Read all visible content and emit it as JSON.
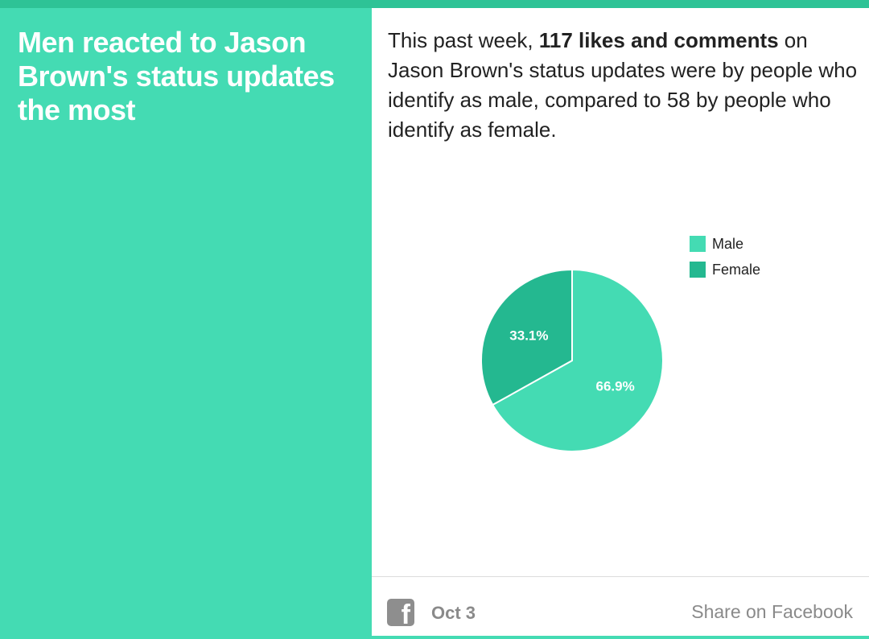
{
  "headline": "Men reacted to Jason Brown's status updates the most",
  "summary": {
    "prefix": "This past week, ",
    "highlight": "117 likes and comments",
    "suffix": " on Jason Brown's status updates were by people who identify as male, compared to 58 by people who identify as female."
  },
  "footer": {
    "icon": "facebook-icon",
    "icon_glyph": "f",
    "date": "Oct 3",
    "share_label": "Share on Facebook"
  },
  "colors": {
    "male": "#44dbb3",
    "female": "#24b890",
    "headline_bg": "#44dbb3",
    "top_bar": "#2ec396"
  },
  "chart_data": {
    "type": "pie",
    "title": "",
    "slices": [
      {
        "label": "Male",
        "value": 66.9,
        "display": "66.9%",
        "color": "#44dbb3"
      },
      {
        "label": "Female",
        "value": 33.1,
        "display": "33.1%",
        "color": "#24b890"
      }
    ],
    "legend": {
      "placement": "top-right",
      "entries": [
        "Male",
        "Female"
      ]
    }
  }
}
